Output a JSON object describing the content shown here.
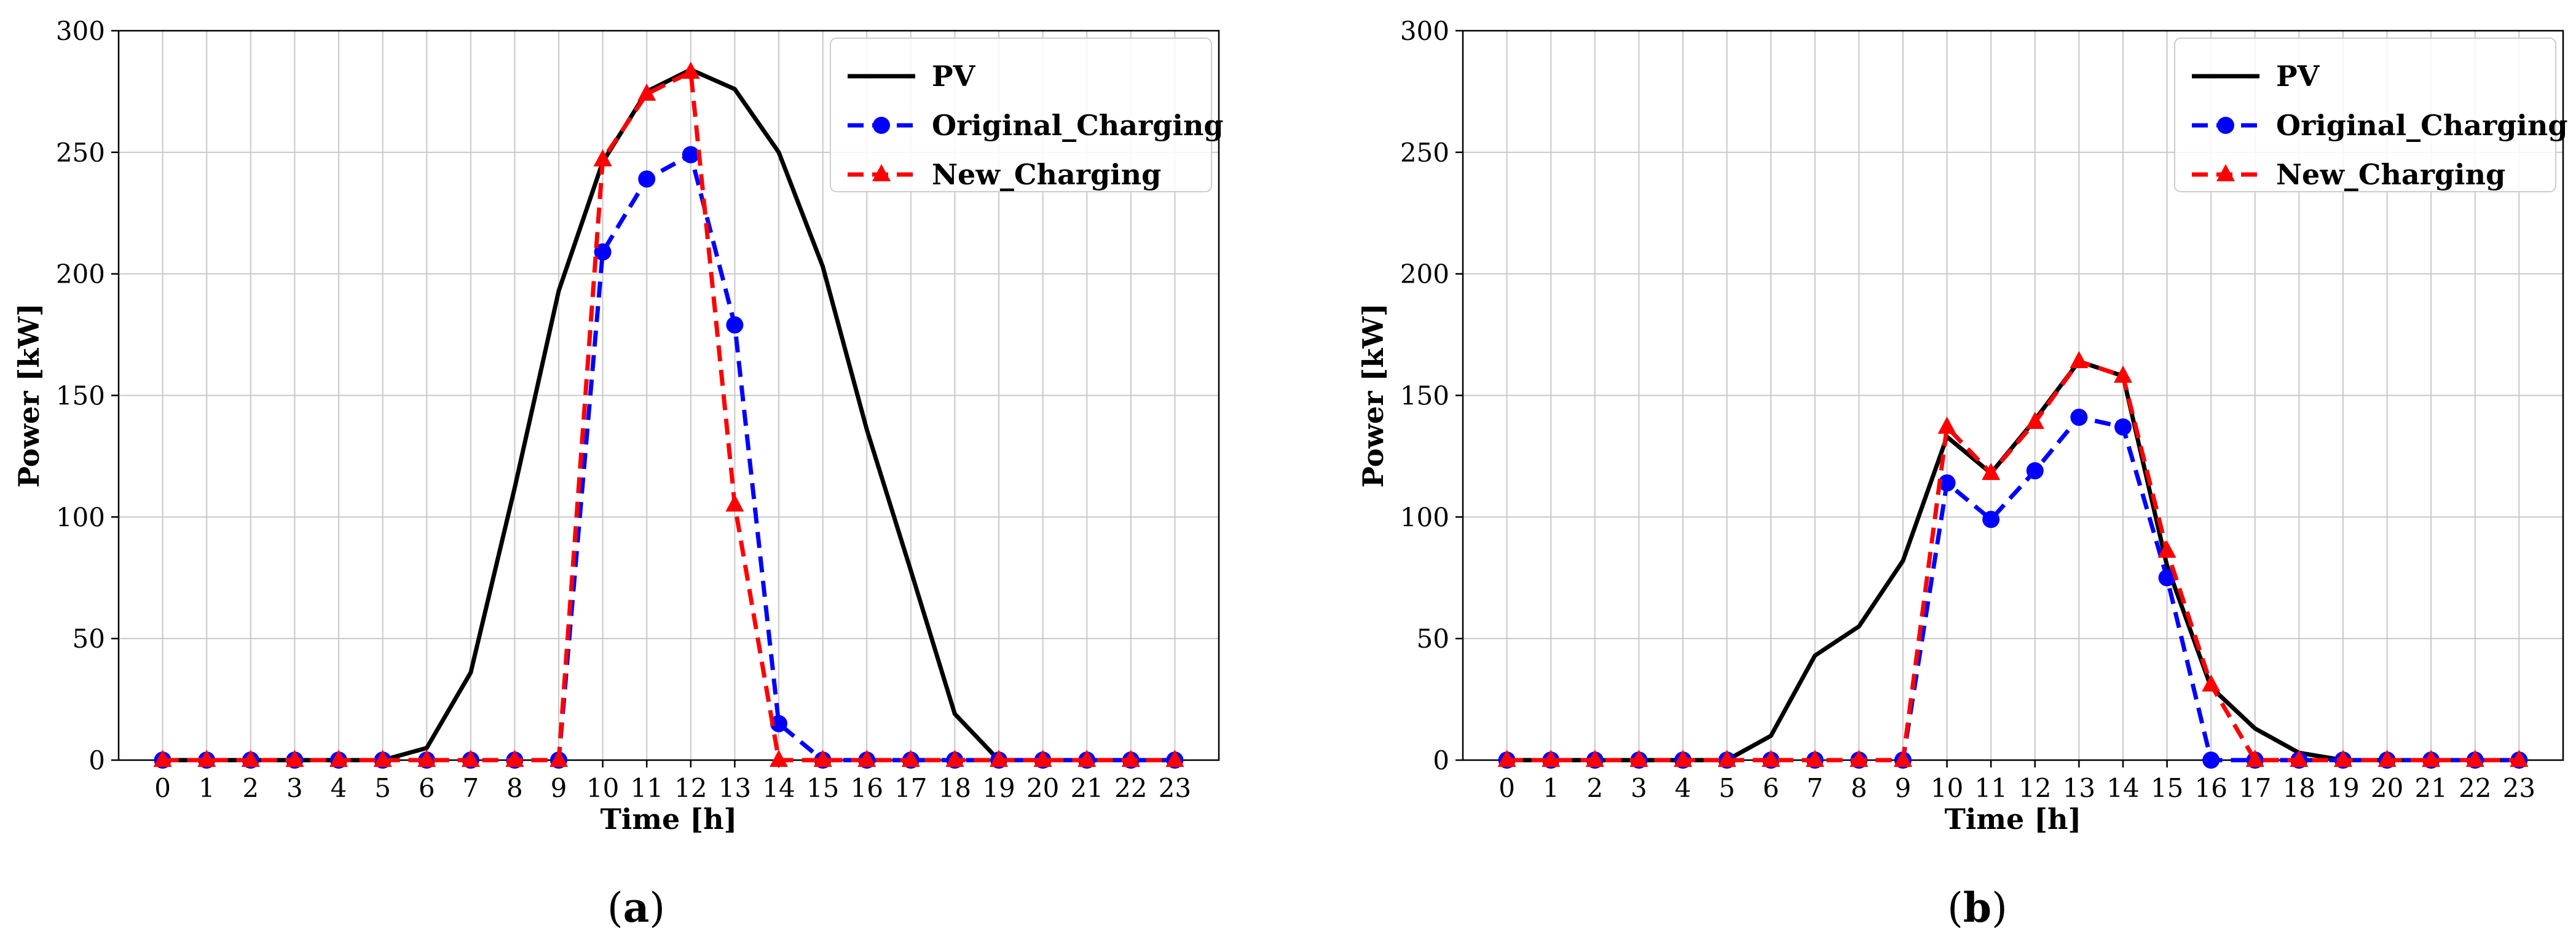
{
  "colors": {
    "pv": "#000000",
    "original": "#0000ff",
    "new": "#ff0000",
    "grid": "#c8c8c8"
  },
  "chart_data": [
    {
      "type": "line",
      "caption": "a",
      "xlabel": "Time [h]",
      "ylabel": "Power [kW]",
      "ylim": [
        0,
        300
      ],
      "yticks": [
        0,
        50,
        100,
        150,
        200,
        250,
        300
      ],
      "xlim": [
        -1,
        24
      ],
      "grid": true,
      "legend_position": "top-right",
      "x": [
        0,
        1,
        2,
        3,
        4,
        5,
        6,
        7,
        8,
        9,
        10,
        11,
        12,
        13,
        14,
        15,
        16,
        17,
        18,
        19,
        20,
        21,
        22,
        23
      ],
      "series": [
        {
          "name": "PV",
          "style": "solid",
          "marker": "none",
          "color": "#000000",
          "values": [
            0,
            0,
            0,
            0,
            0,
            0,
            5,
            36,
            112,
            193,
            246,
            275,
            284,
            276,
            250,
            203,
            136,
            78,
            19,
            0,
            0,
            0,
            0,
            0
          ]
        },
        {
          "name": "Original_Charging",
          "style": "dashed",
          "marker": "circle",
          "color": "#0000ff",
          "values": [
            0,
            0,
            0,
            0,
            0,
            0,
            0,
            0,
            0,
            0,
            209,
            239,
            249,
            179,
            15,
            0,
            0,
            0,
            0,
            0,
            0,
            0,
            0,
            0
          ]
        },
        {
          "name": "New_Charging",
          "style": "dashed",
          "marker": "triangle",
          "color": "#ff0000",
          "values": [
            0,
            0,
            0,
            0,
            0,
            0,
            0,
            0,
            0,
            0,
            247,
            274,
            283,
            105,
            0,
            0,
            0,
            0,
            0,
            0,
            0,
            0,
            0,
            0
          ]
        }
      ]
    },
    {
      "type": "line",
      "caption": "b",
      "xlabel": "Time [h]",
      "ylabel": "Power [kW]",
      "ylim": [
        0,
        300
      ],
      "yticks": [
        0,
        50,
        100,
        150,
        200,
        250,
        300
      ],
      "xlim": [
        -1,
        24
      ],
      "grid": true,
      "legend_position": "top-right",
      "x": [
        0,
        1,
        2,
        3,
        4,
        5,
        6,
        7,
        8,
        9,
        10,
        11,
        12,
        13,
        14,
        15,
        16,
        17,
        18,
        19,
        20,
        21,
        22,
        23
      ],
      "series": [
        {
          "name": "PV",
          "style": "solid",
          "marker": "none",
          "color": "#000000",
          "values": [
            0,
            0,
            0,
            0,
            0,
            0,
            10,
            43,
            55,
            82,
            133,
            118,
            140,
            164,
            158,
            80,
            30,
            13,
            3,
            0,
            0,
            0,
            0,
            0
          ]
        },
        {
          "name": "Original_Charging",
          "style": "dashed",
          "marker": "circle",
          "color": "#0000ff",
          "values": [
            0,
            0,
            0,
            0,
            0,
            0,
            0,
            0,
            0,
            0,
            114,
            99,
            119,
            141,
            137,
            75,
            0,
            0,
            0,
            0,
            0,
            0,
            0,
            0
          ]
        },
        {
          "name": "New_Charging",
          "style": "dashed",
          "marker": "triangle",
          "color": "#ff0000",
          "values": [
            0,
            0,
            0,
            0,
            0,
            0,
            0,
            0,
            0,
            0,
            137,
            118,
            139,
            164,
            158,
            86,
            31,
            0,
            0,
            0,
            0,
            0,
            0,
            0
          ]
        }
      ]
    }
  ]
}
